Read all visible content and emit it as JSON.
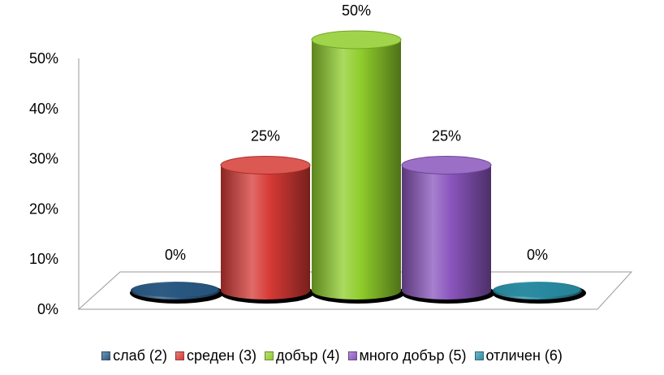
{
  "chart_data": {
    "type": "bar",
    "style": "3d-cylinder",
    "categories": [
      "слаб (2)",
      "среден (3)",
      "добър (4)",
      "много добър (5)",
      "отличен (6)"
    ],
    "values": [
      0,
      25,
      50,
      25,
      0
    ],
    "data_labels": [
      "0%",
      "25%",
      "50%",
      "25%",
      "0%"
    ],
    "series_colors": [
      "#2a5a86",
      "#d63a35",
      "#8fcd2b",
      "#8a55bd",
      "#2a8fa6"
    ],
    "ylim": [
      0,
      50
    ],
    "yticks": [
      "0%",
      "10%",
      "20%",
      "30%",
      "40%",
      "50%"
    ],
    "grid": false,
    "legend": "bottom"
  }
}
